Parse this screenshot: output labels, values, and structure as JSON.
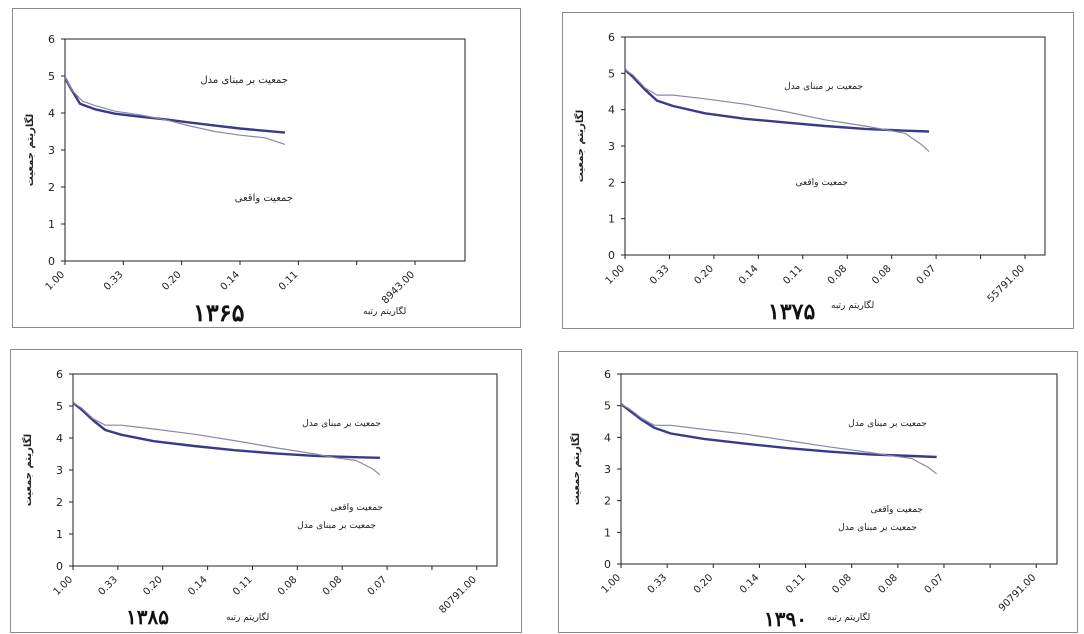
{
  "chart_data": [
    {
      "type": "line",
      "year_label": "۱۳۶۵",
      "ylabel": "لگاریتم جمعیت",
      "xlabel": "لگاریتم رتبه",
      "yticks": [
        "0",
        "1",
        "2",
        "3",
        "4",
        "5",
        "6"
      ],
      "ylim": [
        0,
        6
      ],
      "xticks": [
        "1.00",
        "0.33",
        "0.20",
        "0.14",
        "0.11",
        "",
        "8943.00"
      ],
      "legend": [
        "جمعیت بر مبنای مدل",
        "جمعیت واقعی"
      ],
      "series": [
        {
          "name": "جمعیت بر مبنای مدل",
          "x": [
            0,
            0.1,
            0.3,
            0.6,
            1,
            1.5,
            2,
            2.5,
            3,
            3.5,
            4,
            4.4
          ],
          "values": [
            4.95,
            4.7,
            4.25,
            4.1,
            3.98,
            3.9,
            3.83,
            3.74,
            3.66,
            3.58,
            3.52,
            3.47
          ],
          "style": "thick"
        },
        {
          "name": "جمعیت واقعی",
          "x": [
            0,
            0.15,
            0.35,
            0.6,
            1,
            1.5,
            2,
            2.5,
            3,
            3.5,
            4,
            4.4
          ],
          "values": [
            4.95,
            4.6,
            4.32,
            4.2,
            4.05,
            3.95,
            3.82,
            3.65,
            3.5,
            3.4,
            3.33,
            3.15
          ],
          "style": "thin"
        }
      ],
      "grid": false,
      "legend_placement": "inline-right"
    },
    {
      "type": "line",
      "year_label": "۱۳۷۵",
      "ylabel": "لگاریتم جمعیت",
      "xlabel": "لگاریتم رتبه",
      "yticks": [
        "0",
        "1",
        "2",
        "3",
        "4",
        "5",
        "6"
      ],
      "ylim": [
        0,
        6
      ],
      "xticks": [
        "1.00",
        "0.33",
        "0.20",
        "0.14",
        "0.11",
        "0.08",
        "0.08",
        "0.07",
        "",
        "55791.00"
      ],
      "legend": [
        "جمعیت بر مبنای مدل",
        "جمعیت واقعی"
      ],
      "series": [
        {
          "name": "جمعیت بر مبنای مدل",
          "x": [
            0,
            0.2,
            0.5,
            0.8,
            1.2,
            2,
            3,
            4,
            5,
            6,
            7,
            7.6
          ],
          "values": [
            5.1,
            4.9,
            4.55,
            4.25,
            4.1,
            3.9,
            3.75,
            3.65,
            3.55,
            3.47,
            3.42,
            3.4
          ],
          "style": "thick"
        },
        {
          "name": "جمعیت واقعی",
          "x": [
            0,
            0.2,
            0.5,
            0.8,
            1.2,
            2,
            3,
            4,
            5,
            6,
            6.5,
            7,
            7.4,
            7.6
          ],
          "values": [
            5.1,
            4.95,
            4.6,
            4.4,
            4.4,
            4.3,
            4.15,
            3.95,
            3.72,
            3.55,
            3.45,
            3.35,
            3.05,
            2.85
          ],
          "style": "thin"
        }
      ],
      "grid": false,
      "legend_placement": "inline-right"
    },
    {
      "type": "line",
      "year_label": "۱۳۸۵",
      "ylabel": "لگاریتم جمعیت",
      "xlabel": "لگاریتم رتبه",
      "yticks": [
        "0",
        "1",
        "2",
        "3",
        "4",
        "5",
        "6"
      ],
      "ylim": [
        0,
        6
      ],
      "xticks": [
        "1.00",
        "0.33",
        "0.20",
        "0.14",
        "0.11",
        "0.08",
        "0.08",
        "0.07",
        "",
        "80791.00"
      ],
      "legend": [
        "جمعیت بر مبنای مدل",
        "جمعیت واقعی",
        "جمعیت بر مبنای مدل"
      ],
      "series": [
        {
          "name": "جمعیت بر مبنای مدل",
          "x": [
            0,
            0.2,
            0.5,
            0.8,
            1.2,
            2,
            3,
            4,
            5,
            6,
            7,
            7.6
          ],
          "values": [
            5.1,
            4.9,
            4.55,
            4.25,
            4.1,
            3.9,
            3.75,
            3.62,
            3.52,
            3.44,
            3.4,
            3.38
          ],
          "style": "thick"
        },
        {
          "name": "جمعیت واقعی",
          "x": [
            0,
            0.2,
            0.5,
            0.8,
            1.2,
            2,
            3,
            4,
            5,
            6,
            6.5,
            7,
            7.4,
            7.6
          ],
          "values": [
            5.1,
            4.95,
            4.6,
            4.4,
            4.4,
            4.28,
            4.12,
            3.92,
            3.7,
            3.5,
            3.38,
            3.3,
            3.05,
            2.85
          ],
          "style": "thin"
        }
      ],
      "grid": false,
      "legend_placement": "inline-right"
    },
    {
      "type": "line",
      "year_label": "۱۳۹۰",
      "ylabel": "لگاریتم جمعیت",
      "xlabel": "لگاریتم رتبه",
      "yticks": [
        "0",
        "1",
        "2",
        "3",
        "4",
        "5",
        "6"
      ],
      "ylim": [
        0,
        6
      ],
      "xticks": [
        "1.00",
        "0.33",
        "0.20",
        "0.14",
        "0.11",
        "0.08",
        "0.08",
        "0.07",
        "",
        "90791.00"
      ],
      "legend": [
        "جمعیت بر مبنای مدل",
        "جمعیت واقعی",
        "جمعیت بر مبنای مدل"
      ],
      "series": [
        {
          "name": "جمعیت بر مبنای مدل",
          "x": [
            0,
            0.2,
            0.5,
            0.8,
            1.2,
            2,
            3,
            4,
            5,
            6,
            7,
            7.6
          ],
          "values": [
            5.05,
            4.85,
            4.55,
            4.3,
            4.12,
            3.95,
            3.8,
            3.66,
            3.55,
            3.46,
            3.41,
            3.38
          ],
          "style": "thick"
        },
        {
          "name": "جمعیت واقعی",
          "x": [
            0,
            0.2,
            0.5,
            0.8,
            1.2,
            2,
            3,
            4,
            5,
            6,
            6.5,
            7,
            7.4,
            7.6
          ],
          "values": [
            5.05,
            4.9,
            4.6,
            4.38,
            4.38,
            4.25,
            4.1,
            3.9,
            3.7,
            3.52,
            3.42,
            3.33,
            3.05,
            2.85
          ],
          "style": "thin"
        }
      ],
      "grid": false,
      "legend_placement": "inline-right"
    }
  ],
  "colors": {
    "model_line": "#3a3a8c",
    "actual_line": "#8888aa",
    "axis": "#222222",
    "frame": "#8a8a8a"
  }
}
